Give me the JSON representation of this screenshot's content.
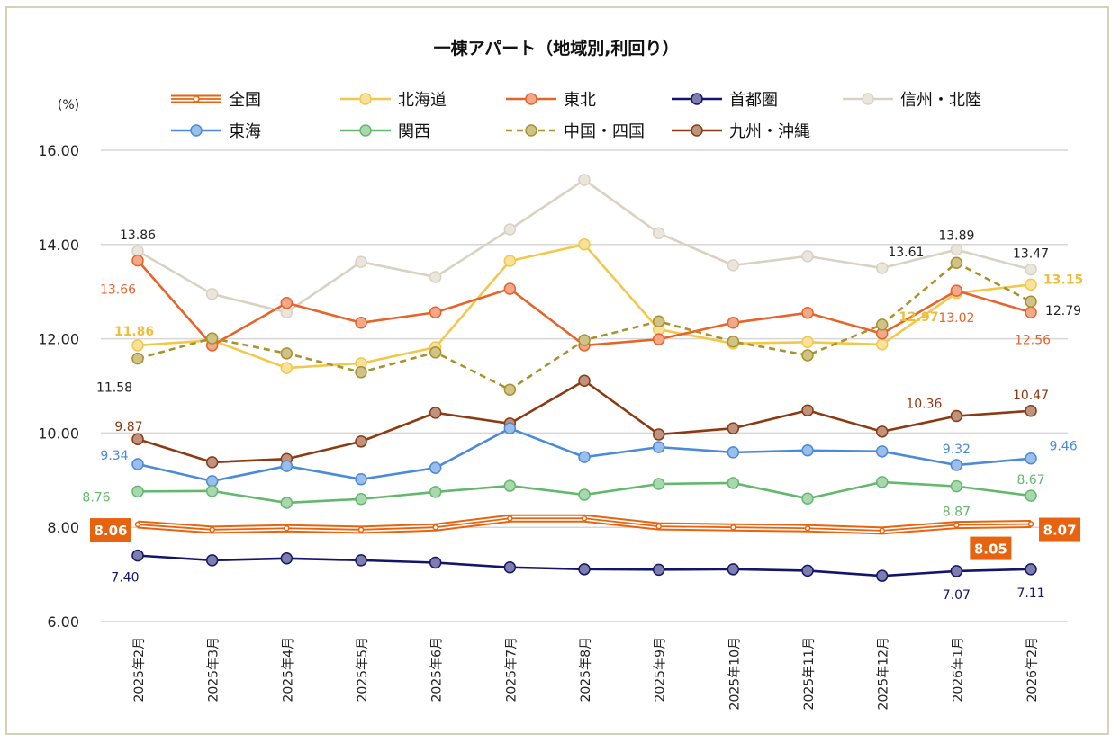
{
  "chart_data": {
    "type": "line",
    "title": "一棟アパート（地域別,利回り）",
    "ylabel": "(%)",
    "ylim": [
      6,
      16
    ],
    "yticks": [
      "6.00",
      "8.00",
      "10.00",
      "12.00",
      "14.00",
      "16.00"
    ],
    "grid": true,
    "legend_position": "top",
    "categories": [
      "2025年2月",
      "2025年3月",
      "2025年4月",
      "2025年5月",
      "2025年6月",
      "2025年7月",
      "2025年8月",
      "2025年9月",
      "2025年10月",
      "2025年11月",
      "2025年12月",
      "2026年1月",
      "2026年2月"
    ],
    "series": [
      {
        "name": "全国",
        "color": "#e8630f",
        "style": "triple",
        "values": [
          8.06,
          7.95,
          7.98,
          7.95,
          8.0,
          8.19,
          8.19,
          8.02,
          8.0,
          7.98,
          7.93,
          8.05,
          8.07
        ],
        "labeled": [
          0,
          11,
          12
        ]
      },
      {
        "name": "北海道",
        "color": "#f2c84b",
        "style": "solid",
        "values": [
          11.86,
          11.97,
          11.38,
          11.48,
          11.82,
          13.65,
          14.0,
          12.2,
          11.9,
          11.93,
          11.88,
          12.97,
          13.15
        ],
        "labeled": [
          0,
          11,
          12
        ]
      },
      {
        "name": "東北",
        "color": "#e8632a",
        "style": "solid",
        "values": [
          13.66,
          11.86,
          12.76,
          12.34,
          12.56,
          13.06,
          11.86,
          11.99,
          12.34,
          12.55,
          12.11,
          13.02,
          12.56
        ],
        "labeled": [
          0,
          11,
          12
        ]
      },
      {
        "name": "首都圏",
        "color": "#14146b",
        "style": "solid",
        "values": [
          7.4,
          7.3,
          7.34,
          7.3,
          7.25,
          7.15,
          7.11,
          7.1,
          7.11,
          7.08,
          6.97,
          7.07,
          7.11
        ],
        "labeled": [
          0,
          11,
          12
        ]
      },
      {
        "name": "信州・北陸",
        "color": "#d9d2c2",
        "style": "solid",
        "values": [
          13.86,
          12.95,
          12.56,
          13.63,
          13.31,
          14.32,
          15.37,
          14.24,
          13.56,
          13.75,
          13.5,
          13.89,
          13.47
        ],
        "labeled": [
          0,
          11,
          12
        ]
      },
      {
        "name": "東海",
        "color": "#4a8ad8",
        "style": "solid",
        "values": [
          9.34,
          8.98,
          9.3,
          9.02,
          9.26,
          10.1,
          9.49,
          9.7,
          9.59,
          9.63,
          9.61,
          9.32,
          9.46
        ],
        "labeled": [
          0,
          11,
          12
        ]
      },
      {
        "name": "関西",
        "color": "#63b86e",
        "style": "solid",
        "values": [
          8.76,
          8.77,
          8.52,
          8.6,
          8.75,
          8.88,
          8.69,
          8.92,
          8.94,
          8.61,
          8.96,
          8.87,
          8.67
        ],
        "labeled": [
          0,
          11,
          12
        ]
      },
      {
        "name": "中国・四国",
        "color": "#a8922a",
        "style": "dashed",
        "values": [
          11.58,
          12.01,
          11.69,
          11.29,
          11.71,
          10.92,
          11.97,
          12.37,
          11.94,
          11.65,
          12.3,
          13.61,
          12.79
        ],
        "labeled": [
          0,
          11,
          12
        ]
      },
      {
        "name": "九州・沖縄",
        "color": "#8b3a12",
        "style": "solid",
        "values": [
          9.87,
          9.38,
          9.45,
          9.82,
          10.43,
          10.2,
          11.11,
          9.97,
          10.1,
          10.48,
          10.03,
          10.36,
          10.47
        ],
        "labeled": [
          0,
          11,
          12
        ]
      }
    ]
  }
}
